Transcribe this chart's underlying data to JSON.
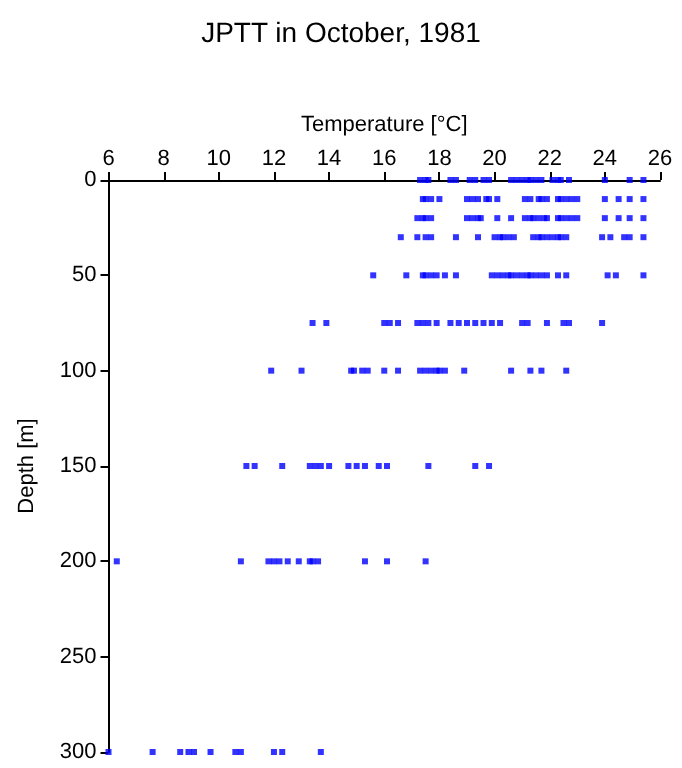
{
  "chart_data": {
    "type": "scatter",
    "title": "JPTT in October, 1981",
    "xlabel": "Temperature [°C]",
    "ylabel": "Depth [m]",
    "marker": "square",
    "xlim": [
      6,
      26
    ],
    "xticks": [
      6,
      8,
      10,
      12,
      14,
      16,
      18,
      20,
      22,
      24,
      26
    ],
    "ylim": [
      300,
      0
    ],
    "yticks": [
      0,
      50,
      100,
      150,
      200,
      250,
      300
    ],
    "series": [
      {
        "color": "#0000ff",
        "x": [
          17.3,
          17.5,
          17.6,
          18.4,
          18.6,
          19.1,
          19.3,
          19.6,
          19.8,
          20.6,
          20.8,
          21.0,
          21.2,
          21.3,
          21.5,
          21.7,
          22.1,
          22.3,
          22.4,
          22.7,
          24.0,
          24.9,
          25.4,
          17.4,
          17.5,
          17.7,
          18.0,
          19.0,
          19.2,
          19.4,
          19.7,
          19.8,
          20.1,
          21.1,
          21.3,
          21.6,
          21.7,
          21.9,
          22.3,
          22.4,
          22.6,
          22.8,
          23.0,
          24.0,
          24.5,
          24.9,
          25.4,
          17.2,
          17.4,
          17.5,
          17.7,
          19.0,
          19.2,
          19.4,
          19.5,
          20.1,
          20.6,
          21.1,
          21.3,
          21.4,
          21.6,
          21.8,
          21.9,
          22.3,
          22.4,
          22.6,
          22.8,
          23.0,
          24.0,
          24.5,
          24.9,
          25.4,
          16.6,
          17.2,
          17.5,
          17.7,
          18.6,
          19.4,
          20.0,
          20.2,
          20.3,
          20.5,
          20.7,
          21.4,
          21.6,
          21.7,
          21.9,
          22.1,
          22.3,
          22.4,
          22.6,
          23.9,
          24.2,
          24.7,
          24.9,
          25.4,
          15.6,
          16.8,
          17.4,
          17.5,
          17.7,
          17.9,
          18.2,
          18.6,
          19.9,
          20.1,
          20.3,
          20.5,
          20.6,
          20.8,
          21.0,
          21.2,
          21.3,
          21.5,
          21.7,
          21.9,
          22.3,
          22.6,
          24.1,
          24.4,
          25.4,
          13.4,
          13.9,
          16.0,
          16.2,
          16.5,
          17.2,
          17.4,
          17.6,
          17.9,
          18.4,
          18.7,
          19.0,
          19.3,
          19.6,
          19.9,
          20.2,
          21.0,
          21.2,
          21.9,
          22.5,
          22.7,
          23.9,
          11.9,
          13.0,
          14.8,
          14.9,
          15.2,
          15.4,
          16.0,
          16.5,
          17.3,
          17.5,
          17.7,
          17.9,
          18.0,
          18.2,
          18.9,
          20.6,
          21.3,
          21.7,
          22.6,
          11.0,
          11.3,
          12.3,
          13.3,
          13.5,
          13.7,
          14.0,
          14.7,
          15.0,
          15.3,
          15.8,
          16.1,
          17.6,
          19.3,
          19.8,
          6.3,
          10.8,
          11.8,
          12.0,
          12.2,
          12.5,
          12.9,
          13.3,
          13.4,
          13.6,
          15.3,
          16.1,
          17.5,
          6.0,
          7.6,
          8.6,
          8.9,
          9.1,
          9.7,
          10.6,
          10.8,
          12.0,
          12.3,
          13.7
        ],
        "values": [
          0,
          0,
          0,
          0,
          0,
          0,
          0,
          0,
          0,
          0,
          0,
          0,
          0,
          0,
          0,
          0,
          0,
          0,
          0,
          0,
          0,
          0,
          0,
          10,
          10,
          10,
          10,
          10,
          10,
          10,
          10,
          10,
          10,
          10,
          10,
          10,
          10,
          10,
          10,
          10,
          10,
          10,
          10,
          10,
          10,
          10,
          10,
          20,
          20,
          20,
          20,
          20,
          20,
          20,
          20,
          20,
          20,
          20,
          20,
          20,
          20,
          20,
          20,
          20,
          20,
          20,
          20,
          20,
          20,
          20,
          20,
          20,
          30,
          30,
          30,
          30,
          30,
          30,
          30,
          30,
          30,
          30,
          30,
          30,
          30,
          30,
          30,
          30,
          30,
          30,
          30,
          30,
          30,
          30,
          30,
          30,
          50,
          50,
          50,
          50,
          50,
          50,
          50,
          50,
          50,
          50,
          50,
          50,
          50,
          50,
          50,
          50,
          50,
          50,
          50,
          50,
          50,
          50,
          50,
          50,
          50,
          75,
          75,
          75,
          75,
          75,
          75,
          75,
          75,
          75,
          75,
          75,
          75,
          75,
          75,
          75,
          75,
          75,
          75,
          75,
          75,
          75,
          75,
          100,
          100,
          100,
          100,
          100,
          100,
          100,
          100,
          100,
          100,
          100,
          100,
          100,
          100,
          100,
          100,
          100,
          100,
          100,
          150,
          150,
          150,
          150,
          150,
          150,
          150,
          150,
          150,
          150,
          150,
          150,
          150,
          150,
          150,
          200,
          200,
          200,
          200,
          200,
          200,
          200,
          200,
          200,
          200,
          200,
          200,
          200,
          300,
          300,
          300,
          300,
          300,
          300,
          300,
          300,
          300,
          300,
          300
        ]
      }
    ]
  }
}
